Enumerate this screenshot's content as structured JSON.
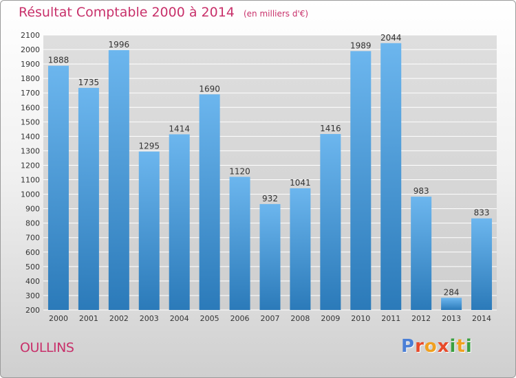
{
  "header": {
    "title": "Résultat Comptable 2000 à 2014",
    "subtitle": "(en milliers d'€)"
  },
  "footer": {
    "city": "OULLINS",
    "logo_text": "Proxiti",
    "logo_colors": [
      "#4a7fd6",
      "#e84a2a",
      "#f0a020",
      "#e84a2a",
      "#3aa040",
      "#f0a020",
      "#3aa040"
    ]
  },
  "colors": {
    "title": "#c8306a",
    "bar_light": "#6cb6ee",
    "bar_dark": "#2b7ab9",
    "grid": "#ffffff",
    "axis_text": "#333333"
  },
  "chart_data": {
    "type": "bar",
    "title": "Résultat Comptable 2000 à 2014",
    "subtitle": "(en milliers d'€)",
    "xlabel": "",
    "ylabel": "",
    "categories": [
      "2000",
      "2001",
      "2002",
      "2003",
      "2004",
      "2005",
      "2006",
      "2007",
      "2008",
      "2009",
      "2010",
      "2011",
      "2012",
      "2013",
      "2014"
    ],
    "values": [
      1888,
      1735,
      1996,
      1295,
      1414,
      1690,
      1120,
      932,
      1041,
      1416,
      1989,
      2044,
      983,
      284,
      833
    ],
    "ylim": [
      200,
      2100
    ],
    "yticks": [
      200,
      300,
      400,
      500,
      600,
      700,
      800,
      900,
      1000,
      1100,
      1200,
      1300,
      1400,
      1500,
      1600,
      1700,
      1800,
      1900,
      2000,
      2100
    ],
    "grid": true,
    "legend": "none"
  }
}
